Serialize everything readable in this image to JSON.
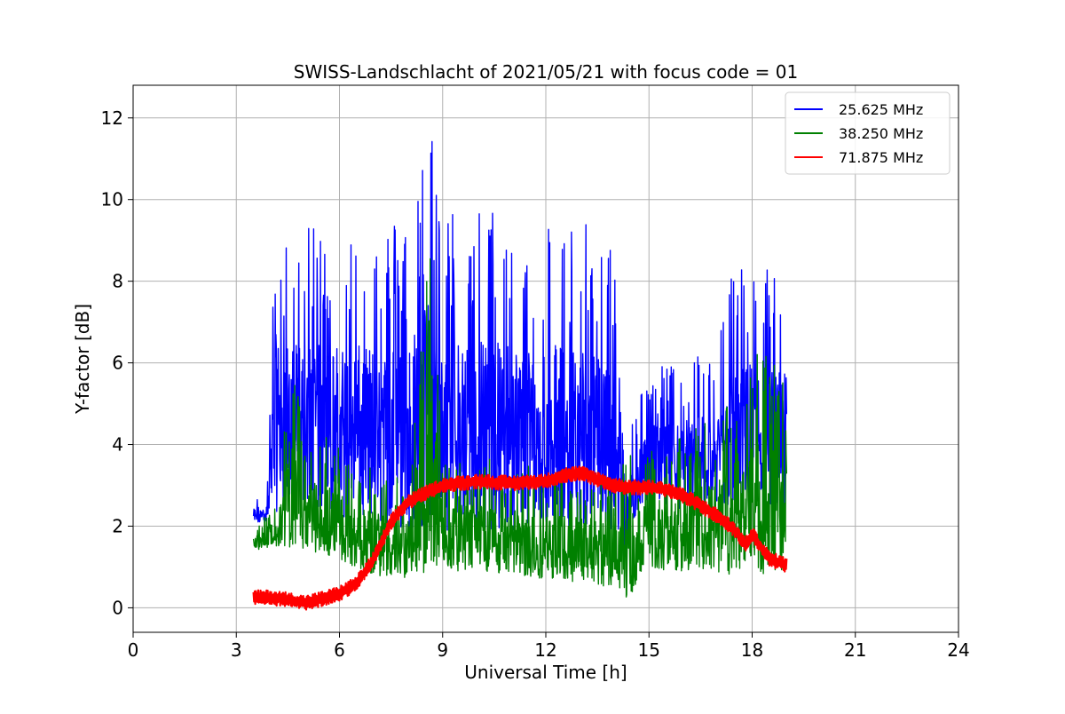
{
  "chart_data": {
    "type": "line",
    "title": "SWISS-Landschlacht of 2021/05/21 with focus code = 01",
    "xlabel": "Universal Time [h]",
    "ylabel": "Y-factor [dB]",
    "xlim": [
      0,
      24
    ],
    "ylim": [
      -0.6,
      12.8
    ],
    "xticks": [
      0,
      3,
      6,
      9,
      12,
      15,
      18,
      21,
      24
    ],
    "xtick_labels": [
      "0",
      "3",
      "6",
      "9",
      "12",
      "15",
      "18",
      "21",
      "24"
    ],
    "yticks": [
      0,
      2,
      4,
      6,
      8,
      10,
      12
    ],
    "ytick_labels": [
      "0",
      "2",
      "4",
      "6",
      "8",
      "10",
      "12"
    ],
    "grid": true,
    "legend_position": "top-right",
    "series": [
      {
        "name": "25.625 MHz",
        "color": "#0000ff",
        "style": "noisy",
        "x": [
          3.5,
          3.9,
          4.15,
          4.3,
          5,
          6,
          7,
          8,
          8.7,
          9,
          10,
          11,
          12,
          13,
          14,
          14.3,
          14.5,
          15,
          16,
          17,
          17.3,
          18,
          19
        ],
        "low": [
          2.0,
          2.1,
          2.3,
          2.6,
          2.5,
          2.2,
          2.0,
          1.9,
          1.8,
          1.9,
          1.9,
          1.9,
          2.0,
          2.0,
          1.9,
          1.0,
          2.1,
          2.5,
          2.4,
          2.4,
          2.4,
          2.4,
          2.3
        ],
        "high": [
          2.7,
          3.0,
          9.8,
          9.0,
          9.3,
          9.4,
          9.5,
          9.6,
          12.1,
          9.8,
          9.9,
          9.7,
          9.6,
          9.5,
          9.0,
          3.0,
          4.8,
          5.8,
          6.2,
          6.4,
          8.3,
          8.6,
          8.2
        ]
      },
      {
        "name": "38.250 MHz",
        "color": "#008000",
        "style": "noisy",
        "x": [
          3.5,
          4.2,
          4.4,
          5,
          6,
          6.5,
          7,
          8,
          8.7,
          9,
          10,
          11,
          12,
          13,
          14,
          14.4,
          14.7,
          15,
          16,
          17,
          17.5,
          18,
          19
        ],
        "low": [
          1.4,
          1.5,
          1.5,
          1.4,
          1.2,
          0.9,
          0.8,
          0.7,
          0.8,
          0.9,
          0.9,
          0.8,
          0.7,
          0.6,
          0.5,
          0.2,
          0.7,
          0.9,
          0.9,
          0.8,
          0.8,
          0.8,
          0.9
        ],
        "high": [
          2.0,
          2.6,
          6.5,
          4.6,
          4.0,
          3.6,
          3.4,
          3.3,
          9.5,
          3.6,
          3.7,
          3.6,
          3.5,
          3.4,
          3.2,
          3.8,
          3.6,
          3.8,
          4.2,
          4.8,
          5.8,
          6.4,
          5.8
        ]
      },
      {
        "name": "71.875 MHz",
        "color": "#ff0000",
        "style": "band",
        "x": [
          3.5,
          4,
          4.5,
          5,
          5.5,
          6,
          6.5,
          7,
          7.5,
          8,
          8.5,
          9,
          10,
          11,
          12,
          12.5,
          13,
          13.5,
          14,
          14.5,
          15,
          15.5,
          16,
          16.5,
          17,
          17.5,
          17.8,
          18,
          18.5,
          19
        ],
        "mid": [
          0.25,
          0.25,
          0.2,
          0.12,
          0.22,
          0.35,
          0.6,
          1.2,
          2.1,
          2.6,
          2.8,
          3.0,
          3.1,
          3.05,
          3.1,
          3.25,
          3.3,
          3.15,
          3.0,
          2.95,
          2.95,
          2.9,
          2.75,
          2.5,
          2.25,
          1.9,
          1.55,
          1.8,
          1.2,
          1.05
        ],
        "band": 0.18
      }
    ]
  }
}
